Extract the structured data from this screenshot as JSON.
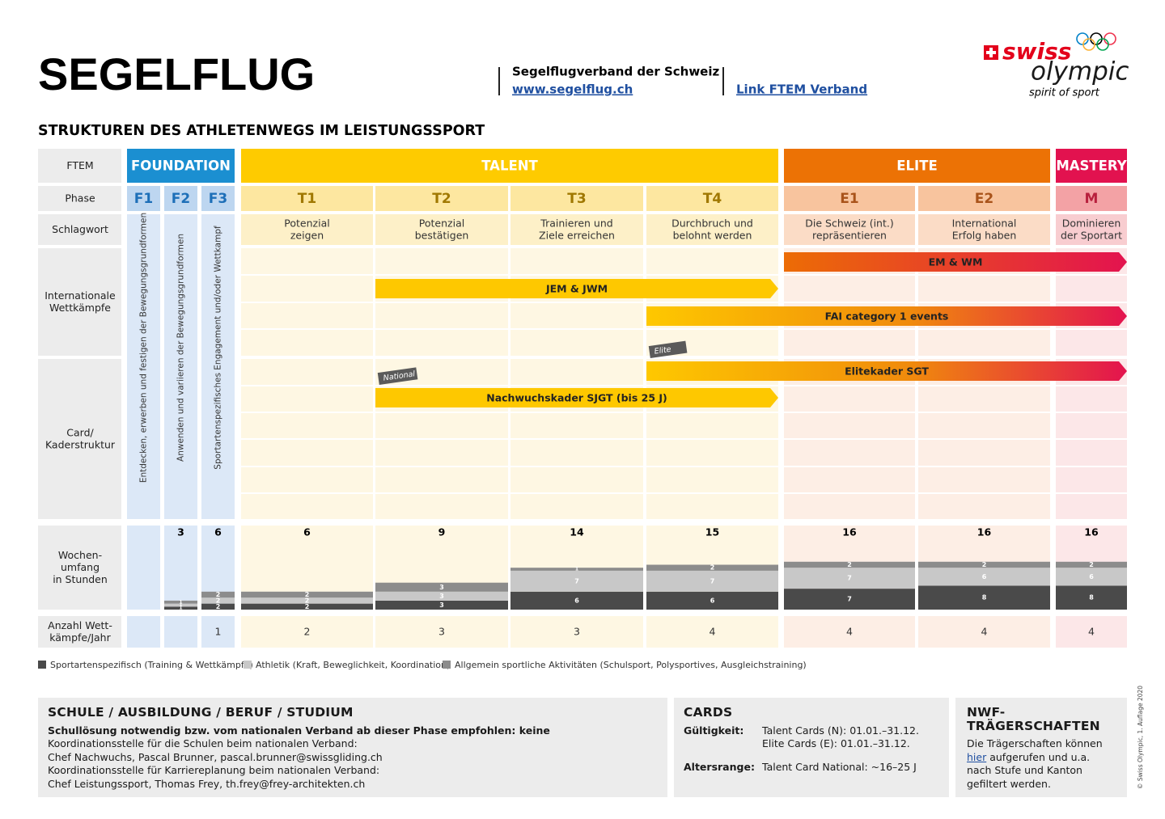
{
  "header": {
    "title": "SEGELFLUG",
    "association": "Segelflugverband der Schweiz",
    "website": "www.segelflug.ch",
    "ftem_link": "Link FTEM Verband",
    "logo": {
      "swiss": "swiss",
      "olympic": "olympic",
      "tagline": "spirit of sport"
    }
  },
  "subtitle": "STRUKTUREN DES ATHLETENWEGS IM LEISTUNGSSPORT",
  "row_labels": {
    "ftem": [
      "FTEM"
    ],
    "phase": [
      "Phase"
    ],
    "keyword": [
      "Schlagwort"
    ],
    "international": [
      "Internationale",
      "Wettkämpfe"
    ],
    "card": [
      "Card/",
      "Kaderstruktur"
    ],
    "hours": [
      "Wochen-",
      "umfang",
      "in Stunden"
    ],
    "competitions": [
      "Anzahl Wett-",
      "kämpfe/Jahr"
    ]
  },
  "stages": [
    "FOUNDATION",
    "TALENT",
    "ELITE",
    "MASTERY"
  ],
  "phases": [
    {
      "code": "F1",
      "keyword": [
        "Entdecken, erwerben und festigen der Bewegungsgrundformen"
      ],
      "hours": {
        "total": null,
        "sport": null,
        "athletics": null,
        "general": null
      },
      "competitions": null
    },
    {
      "code": "F2",
      "keyword": [
        "Anwenden und variieren der Bewegungsgrundformen"
      ],
      "hours": {
        "total": 3,
        "sport": 1,
        "athletics": 1,
        "general": 1
      },
      "competitions": null
    },
    {
      "code": "F3",
      "keyword": [
        "Sportartenspezifisches Engagement und/oder Wettkampf"
      ],
      "hours": {
        "total": 6,
        "sport": 2,
        "athletics": 2,
        "general": 2
      },
      "competitions": 1
    },
    {
      "code": "T1",
      "keyword": [
        "Potenzial",
        "zeigen"
      ],
      "hours": {
        "total": 6,
        "sport": 2,
        "athletics": 2,
        "general": 2
      },
      "competitions": 2
    },
    {
      "code": "T2",
      "keyword": [
        "Potenzial",
        "bestätigen"
      ],
      "hours": {
        "total": 9,
        "sport": 3,
        "athletics": 3,
        "general": 3
      },
      "competitions": 3
    },
    {
      "code": "T3",
      "keyword": [
        "Trainieren und",
        "Ziele erreichen"
      ],
      "hours": {
        "total": 14,
        "sport": 6,
        "athletics": 7,
        "general": 1
      },
      "competitions": 3
    },
    {
      "code": "T4",
      "keyword": [
        "Durchbruch und",
        "belohnt werden"
      ],
      "hours": {
        "total": 15,
        "sport": 6,
        "athletics": 7,
        "general": 2
      },
      "competitions": 4
    },
    {
      "code": "E1",
      "keyword": [
        "Die Schweiz (int.)",
        "repräsentieren"
      ],
      "hours": {
        "total": 16,
        "sport": 7,
        "athletics": 7,
        "general": 2
      },
      "competitions": 4
    },
    {
      "code": "E2",
      "keyword": [
        "International",
        "Erfolg haben"
      ],
      "hours": {
        "total": 16,
        "sport": 8,
        "athletics": 6,
        "general": 2
      },
      "competitions": 4
    },
    {
      "code": "M",
      "keyword": [
        "Dominieren",
        "der Sportart"
      ],
      "hours": {
        "total": 16,
        "sport": 8,
        "athletics": 6,
        "general": 2
      },
      "competitions": 4
    }
  ],
  "international_bars": [
    {
      "label": "EM & WM"
    },
    {
      "label": "JEM & JWM"
    },
    {
      "label": "FAI category 1 events"
    }
  ],
  "card_bars": [
    {
      "label": "Elitekader SGT",
      "tag": "Elite"
    },
    {
      "label": "Nachwuchskader SJGT (bis 25 J)",
      "tag": "National"
    }
  ],
  "legend": [
    "Sportartenspezifisch (Training & Wettkämpfe)",
    "Athletik (Kraft, Beweglichkeit, Koordination)",
    "Allgemein sportliche Aktivitäten (Schulsport, Polysportives, Ausgleichstraining)"
  ],
  "school": {
    "title": "SCHULE / AUSBILDUNG / BERUF / STUDIUM",
    "lines": [
      "Schullösung notwendig bzw. vom nationalen Verband ab dieser Phase empfohlen: keine",
      "Koordinationsstelle für die Schulen beim nationalen Verband:",
      "Chef Nachwuchs, Pascal Brunner, pascal.brunner@swissgliding.ch",
      "Koordinationsstelle für Karriereplanung beim nationalen Verband:",
      "Chef Leistungssport, Thomas Frey, th.frey@frey-architekten.ch"
    ]
  },
  "cards": {
    "title": "CARDS",
    "validity_label": "Gültigkeit:",
    "validity": [
      "Talent Cards (N): 01.01.–31.12.",
      "Elite Cards (E): 01.01.–31.12."
    ],
    "age_label": "Altersrange:",
    "age": "Talent Card National: ~16–25 J"
  },
  "nwf": {
    "title": "NWF-TRÄGERSCHAFTEN",
    "text_before": "Die Trägerschaften können",
    "link": "hier",
    "text_after": "aufgerufen und u.a. nach Stufe und Kanton gefiltert werden."
  },
  "copyright": "© Swiss Olympic, 1. Auflage 2020"
}
